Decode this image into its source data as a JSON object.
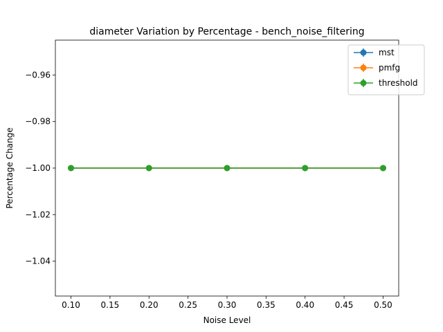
{
  "chart_data": {
    "type": "line",
    "title": "diameter Variation by Percentage - bench_noise_filtering",
    "xlabel": "Noise Level",
    "ylabel": "Percentage Change",
    "x": [
      0.1,
      0.2,
      0.3,
      0.4,
      0.5
    ],
    "xlim": [
      0.08,
      0.52
    ],
    "ylim": [
      -1.055,
      -0.945
    ],
    "xticks": [
      0.1,
      0.15,
      0.2,
      0.25,
      0.3,
      0.35,
      0.4,
      0.45,
      0.5
    ],
    "xtick_labels": [
      "0.10",
      "0.15",
      "0.20",
      "0.25",
      "0.30",
      "0.35",
      "0.40",
      "0.45",
      "0.50"
    ],
    "yticks": [
      -1.04,
      -1.02,
      -1.0,
      -0.98,
      -0.96
    ],
    "ytick_labels": [
      "−1.04",
      "−1.02",
      "−1.00",
      "−0.98",
      "−0.96"
    ],
    "grid": false,
    "legend_position": "top-right",
    "series": [
      {
        "name": "mst",
        "color": "#1f77b4",
        "values": [
          -1.0,
          -1.0,
          -1.0,
          -1.0,
          -1.0
        ]
      },
      {
        "name": "pmfg",
        "color": "#ff7f0e",
        "values": [
          -1.0,
          -1.0,
          -1.0,
          -1.0,
          -1.0
        ]
      },
      {
        "name": "threshold",
        "color": "#2ca02c",
        "values": [
          -1.0,
          -1.0,
          -1.0,
          -1.0,
          -1.0
        ]
      }
    ]
  }
}
